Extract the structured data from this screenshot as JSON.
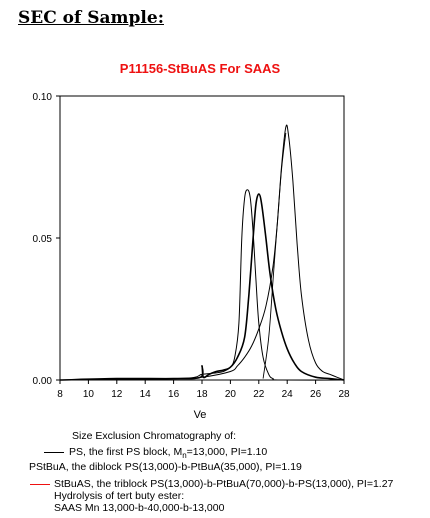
{
  "heading": "SEC of Sample:",
  "chart_data": {
    "type": "line",
    "title": "P11156-StBuAS For SAAS",
    "xlabel": "Ve",
    "ylabel": "",
    "xlim": [
      8,
      28
    ],
    "ylim": [
      0,
      0.1
    ],
    "x_ticks": [
      8,
      10,
      12,
      14,
      16,
      18,
      20,
      22,
      24,
      26,
      28
    ],
    "y_ticks": [
      0.0,
      0.05,
      0.1
    ],
    "y_tick_labels": [
      "0.00",
      "0.05",
      "0.10"
    ],
    "grid": false,
    "series": [
      {
        "name": "PS, the first PS block, Mn=13,000, PI=1.10",
        "color": "#000000",
        "points": [
          [
            8,
            0
          ],
          [
            16,
            0.0005
          ],
          [
            17.5,
            0.001
          ],
          [
            18,
            0.002
          ],
          [
            19,
            0.0025
          ],
          [
            19.5,
            0.003
          ],
          [
            20,
            0.0045
          ],
          [
            20.3,
            0.008
          ],
          [
            20.6,
            0.02
          ],
          [
            20.8,
            0.05
          ],
          [
            21,
            0.064
          ],
          [
            21.2,
            0.067
          ],
          [
            21.4,
            0.064
          ],
          [
            21.6,
            0.052
          ],
          [
            21.8,
            0.035
          ],
          [
            22,
            0.02
          ],
          [
            22.3,
            0.008
          ],
          [
            22.7,
            0.002
          ],
          [
            23,
            0.0005
          ],
          [
            23.5,
            0
          ],
          [
            28,
            0
          ]
        ]
      },
      {
        "name": "PStBuA, the diblock PS(13,000)-b-PtBuA(35,000), PI=1.19",
        "color": "#000000",
        "points": [
          [
            8,
            0
          ],
          [
            12,
            0.0005
          ],
          [
            16,
            0.0005
          ],
          [
            17.9,
            0.001
          ],
          [
            18,
            0.005
          ],
          [
            18.1,
            0.001
          ],
          [
            18.5,
            0.002
          ],
          [
            19,
            0.003
          ],
          [
            19.5,
            0.0035
          ],
          [
            20,
            0.0045
          ],
          [
            20.5,
            0.008
          ],
          [
            21,
            0.015
          ],
          [
            21.3,
            0.03
          ],
          [
            21.6,
            0.05
          ],
          [
            21.8,
            0.062
          ],
          [
            22,
            0.0655
          ],
          [
            22.2,
            0.062
          ],
          [
            22.5,
            0.05
          ],
          [
            22.8,
            0.037
          ],
          [
            23.2,
            0.025
          ],
          [
            23.6,
            0.017
          ],
          [
            24,
            0.011
          ],
          [
            24.5,
            0.006
          ],
          [
            25,
            0.003
          ],
          [
            26,
            0.001
          ],
          [
            27,
            0.0005
          ],
          [
            28,
            0
          ]
        ]
      },
      {
        "name": "StBuAS, the triblock PS(13,000)-b-PtBuA(70,000)-b-PS(13,000), PI=1.27",
        "color": "#000000",
        "points": [
          [
            8,
            0
          ],
          [
            16,
            0.0005
          ],
          [
            18,
            0.001
          ],
          [
            20,
            0.003
          ],
          [
            20.5,
            0.005
          ],
          [
            21,
            0.008
          ],
          [
            21.5,
            0.012
          ],
          [
            22,
            0.018
          ],
          [
            22.5,
            0.026
          ],
          [
            23,
            0.04
          ],
          [
            23.3,
            0.055
          ],
          [
            23.6,
            0.075
          ],
          [
            23.9,
            0.089
          ],
          [
            24.1,
            0.086
          ],
          [
            24.4,
            0.07
          ],
          [
            24.7,
            0.048
          ],
          [
            25,
            0.03
          ],
          [
            25.5,
            0.014
          ],
          [
            26,
            0.006
          ],
          [
            26.5,
            0.003
          ],
          [
            27,
            0.002
          ],
          [
            27.5,
            0.001
          ],
          [
            28,
            0
          ]
        ]
      },
      {
        "name": "",
        "color": "#000000",
        "points": [
          [
            22.3,
            0.0005
          ],
          [
            22.7,
            0.015
          ],
          [
            23,
            0.035
          ],
          [
            23.3,
            0.055
          ],
          [
            23.6,
            0.074
          ],
          [
            23.9,
            0.087
          ]
        ]
      }
    ]
  },
  "captions": {
    "line1": "Size Exclusion Chromatography of:",
    "line2_pre": "PS, the first PS block, M",
    "line2_sub": "n",
    "line2_post": "=13,000, PI=1.10",
    "line3": "PStBuA, the diblock PS(13,000)-b-PtBuA(35,000),  PI=1.19",
    "line4": "StBuAS, the triblock PS(13,000)-b-PtBuA(70,000)-b-PS(13,000), PI=1.27",
    "line5": "Hydrolysis of tert buty ester:",
    "line6": "SAAS Mn 13,000-b-40,000-b-13,000"
  },
  "legend_colors": {
    "line2": "#000000",
    "line4": "#ee1111"
  }
}
